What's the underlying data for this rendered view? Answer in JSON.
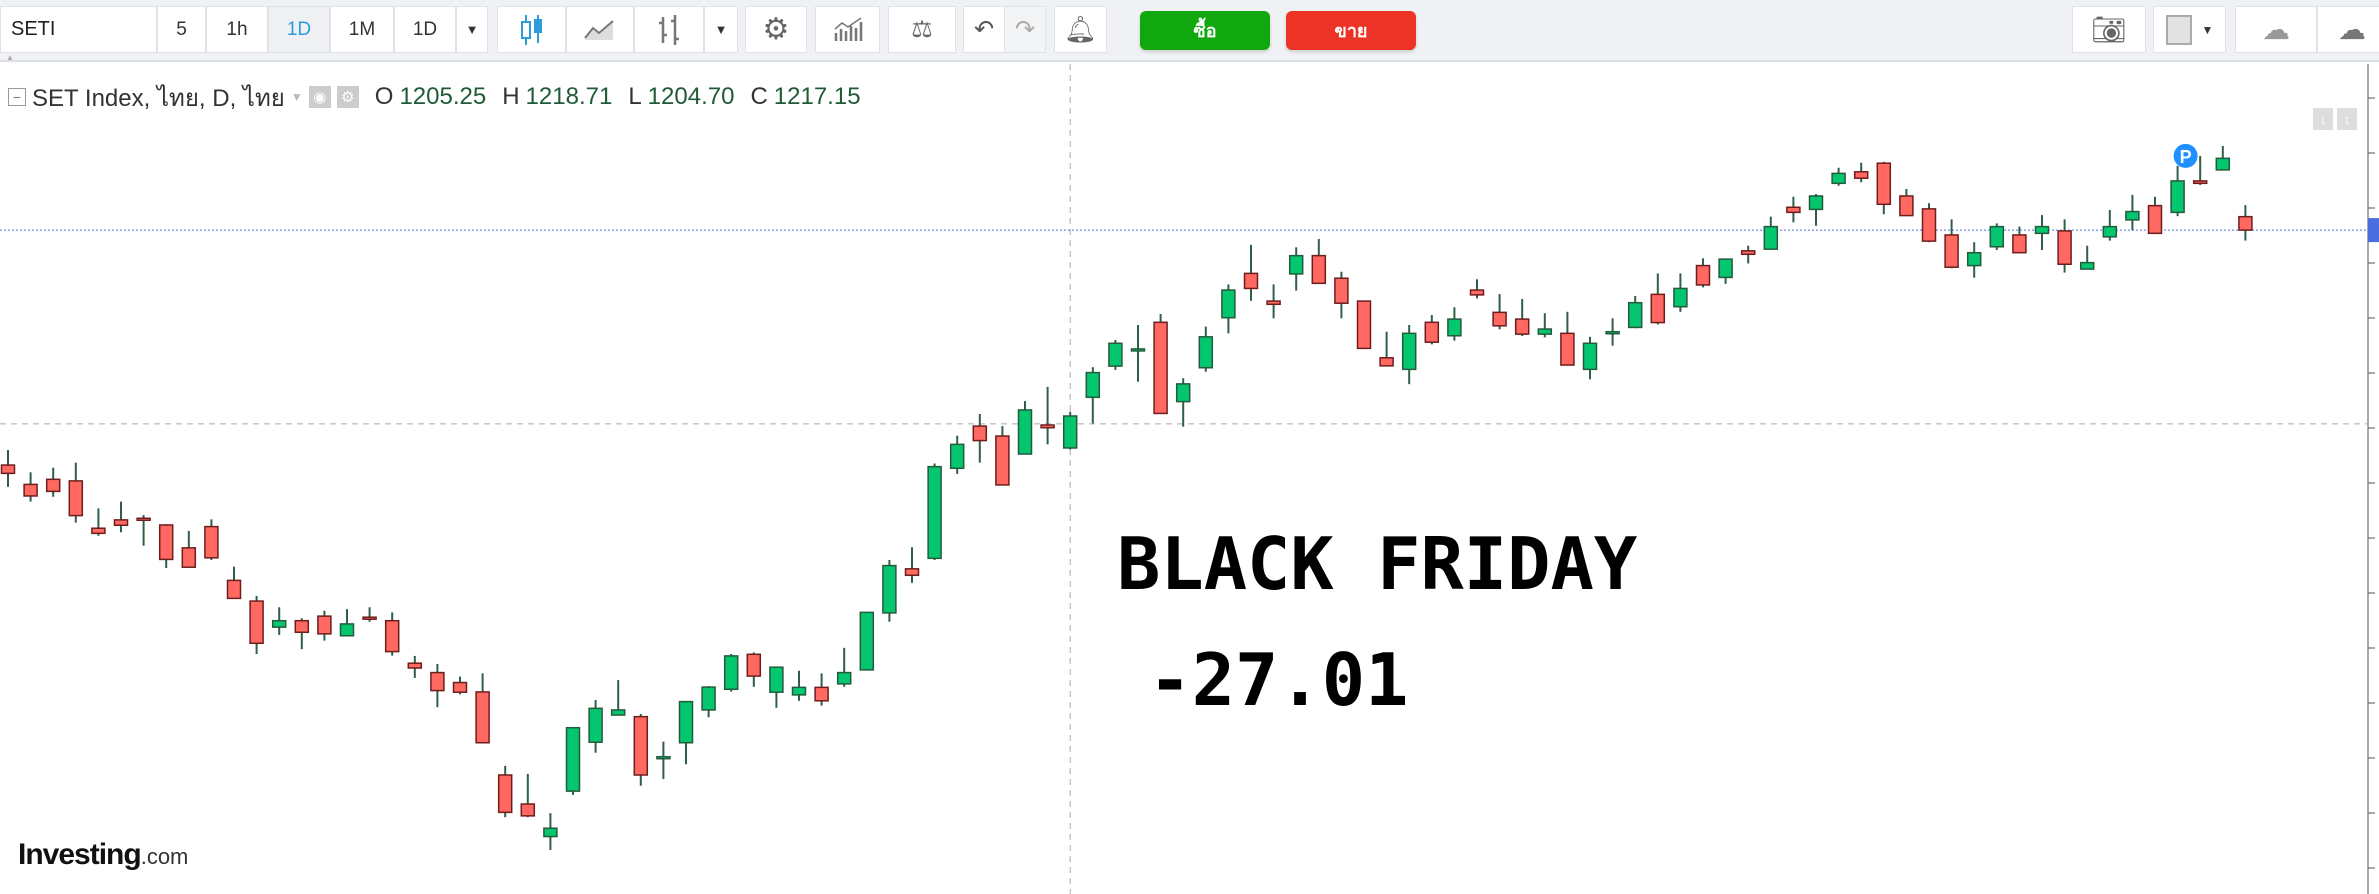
{
  "toolbar": {
    "symbol": "SETI",
    "intervals": [
      "5",
      "1h",
      "1D",
      "1M",
      "1D"
    ],
    "active_interval": "1D",
    "buy_label": "ซื้อ",
    "sell_label": "ขาย"
  },
  "legend": {
    "title": "SET Index, ไทย, D, ไทย",
    "o_label": "O",
    "o": "1205.25",
    "h_label": "H",
    "h": "1218.71",
    "l_label": "L",
    "l": "1204.70",
    "c_label": "C",
    "c": "1217.15"
  },
  "annotation": {
    "line1": "BLACK FRIDAY",
    "line2": " -27.01"
  },
  "logo": {
    "main": "Investing",
    "suffix": ".com"
  },
  "colors": {
    "up": "#03c66f",
    "down": "#ff6961",
    "up_border": "#245b3d",
    "down_border": "#6e1d1d",
    "wick": "#2f5f47",
    "last_price": "#4a6ee0",
    "marker": "#1e90ff"
  },
  "marker": {
    "label": "P",
    "candle_index": 96
  },
  "chart_data": {
    "type": "candlestick",
    "title": "SET Index, ไทย, D, ไทย",
    "interval": "D",
    "crosshair_candle_index": 47,
    "ohlc_order": [
      "open",
      "high",
      "low",
      "close"
    ],
    "candles": [
      [
        1198.9,
        1204.5,
        1190.8,
        1195.8
      ],
      [
        1191.7,
        1196.2,
        1185.3,
        1187.4
      ],
      [
        1193.6,
        1197.9,
        1187.1,
        1189.1
      ],
      [
        1193.0,
        1199.8,
        1177.5,
        1180.1
      ],
      [
        1175.4,
        1182.8,
        1172.6,
        1173.5
      ],
      [
        1178.5,
        1185.3,
        1173.9,
        1176.5
      ],
      [
        1179.1,
        1180.3,
        1168.9,
        1178.8
      ],
      [
        1176.6,
        1176.9,
        1160.6,
        1163.8
      ],
      [
        1168.1,
        1174.4,
        1160.9,
        1160.9
      ],
      [
        1176.0,
        1178.7,
        1163.6,
        1164.4
      ],
      [
        1156.0,
        1161.1,
        1149.3,
        1149.3
      ],
      [
        1148.3,
        1150.2,
        1128.6,
        1132.6
      ],
      [
        1138.6,
        1146.0,
        1135.7,
        1141.0
      ],
      [
        1141.0,
        1141.9,
        1130.4,
        1136.7
      ],
      [
        1142.7,
        1144.7,
        1133.6,
        1136.1
      ],
      [
        1135.4,
        1145.3,
        1135.4,
        1139.8
      ],
      [
        1142.3,
        1146.0,
        1140.6,
        1142.0
      ],
      [
        1141.0,
        1144.1,
        1128.0,
        1129.5
      ],
      [
        1125.2,
        1127.9,
        1119.7,
        1123.4
      ],
      [
        1121.7,
        1124.9,
        1108.8,
        1115.0
      ],
      [
        1118.0,
        1120.2,
        1113.6,
        1114.4
      ],
      [
        1114.5,
        1121.4,
        1095.6,
        1095.6
      ],
      [
        1083.6,
        1087.0,
        1067.9,
        1069.7
      ],
      [
        1072.8,
        1084.0,
        1067.9,
        1068.4
      ],
      [
        1060.7,
        1069.4,
        1055.7,
        1063.8
      ],
      [
        1077.6,
        1101.2,
        1076.2,
        1101.2
      ],
      [
        1095.8,
        1111.5,
        1091.9,
        1108.4
      ],
      [
        1105.9,
        1118.9,
        1105.9,
        1107.8
      ],
      [
        1105.3,
        1106.3,
        1079.6,
        1083.6
      ],
      [
        1090.2,
        1096.0,
        1082.1,
        1090.4
      ],
      [
        1095.6,
        1110.9,
        1087.6,
        1110.9
      ],
      [
        1107.8,
        1116.7,
        1105.1,
        1116.3
      ],
      [
        1115.5,
        1128.6,
        1114.6,
        1127.9
      ],
      [
        1128.5,
        1129.2,
        1116.4,
        1120.4
      ],
      [
        1114.4,
        1123.9,
        1108.6,
        1123.7
      ],
      [
        1113.4,
        1122.4,
        1111.2,
        1116.2
      ],
      [
        1116.2,
        1121.4,
        1109.4,
        1111.2
      ],
      [
        1117.5,
        1130.9,
        1116.4,
        1121.7
      ],
      [
        1122.7,
        1144.1,
        1122.7,
        1144.1
      ],
      [
        1143.9,
        1163.6,
        1140.6,
        1161.5
      ],
      [
        1160.3,
        1168.3,
        1155.1,
        1157.9
      ],
      [
        1164.2,
        1199.5,
        1163.6,
        1198.3
      ],
      [
        1197.7,
        1209.8,
        1195.6,
        1206.6
      ],
      [
        1213.4,
        1217.9,
        1199.8,
        1208.0
      ],
      [
        1209.7,
        1213.4,
        1191.5,
        1191.5
      ],
      [
        1203.0,
        1222.7,
        1203.0,
        1219.4
      ],
      [
        1213.8,
        1228.0,
        1206.6,
        1212.8
      ],
      [
        1205.25,
        1218.71,
        1204.7,
        1217.15
      ],
      [
        1224.1,
        1235.3,
        1214.4,
        1233.3
      ],
      [
        1235.7,
        1245.4,
        1234.3,
        1244.2
      ],
      [
        1241.9,
        1251.0,
        1229.9,
        1242.1
      ],
      [
        1252.0,
        1255.1,
        1218.1,
        1218.1
      ],
      [
        1222.5,
        1231.2,
        1213.2,
        1229.1
      ],
      [
        1235.1,
        1250.4,
        1233.6,
        1246.6
      ],
      [
        1253.7,
        1266.1,
        1247.9,
        1264.0
      ],
      [
        1270.2,
        1280.8,
        1260.0,
        1264.6
      ],
      [
        1259.9,
        1266.1,
        1253.5,
        1258.7
      ],
      [
        1270.0,
        1279.9,
        1263.8,
        1276.8
      ],
      [
        1276.8,
        1283.0,
        1266.5,
        1266.5
      ],
      [
        1268.4,
        1270.8,
        1253.5,
        1259.1
      ],
      [
        1259.9,
        1260.0,
        1242.3,
        1242.3
      ],
      [
        1238.8,
        1248.5,
        1235.8,
        1235.8
      ],
      [
        1234.5,
        1251.0,
        1229.0,
        1247.9
      ],
      [
        1252.0,
        1254.7,
        1243.8,
        1244.6
      ],
      [
        1247.0,
        1257.6,
        1245.2,
        1253.2
      ],
      [
        1264.0,
        1268.0,
        1260.9,
        1262.2
      ],
      [
        1255.7,
        1262.5,
        1249.4,
        1250.7
      ],
      [
        1253.2,
        1260.7,
        1246.9,
        1247.6
      ],
      [
        1247.6,
        1255.4,
        1246.4,
        1249.5
      ],
      [
        1247.9,
        1255.9,
        1236.1,
        1236.1
      ],
      [
        1234.5,
        1246.6,
        1230.8,
        1244.2
      ],
      [
        1248.3,
        1253.5,
        1243.3,
        1248.5
      ],
      [
        1250.1,
        1261.8,
        1249.8,
        1259.3
      ],
      [
        1262.4,
        1270.2,
        1251.2,
        1251.9
      ],
      [
        1257.8,
        1270.2,
        1255.9,
        1264.6
      ],
      [
        1273.1,
        1275.8,
        1265.0,
        1265.9
      ],
      [
        1268.7,
        1275.8,
        1266.3,
        1275.5
      ],
      [
        1278.6,
        1280.5,
        1273.9,
        1277.3
      ],
      [
        1279.2,
        1291.3,
        1279.2,
        1287.6
      ],
      [
        1294.8,
        1298.7,
        1289.2,
        1292.9
      ],
      [
        1294.0,
        1299.7,
        1287.9,
        1299.0
      ],
      [
        1303.7,
        1309.5,
        1302.8,
        1307.4
      ],
      [
        1308.0,
        1311.4,
        1304.1,
        1305.6
      ],
      [
        1311.2,
        1311.7,
        1292.2,
        1295.9
      ],
      [
        1299.0,
        1301.6,
        1291.7,
        1291.7
      ],
      [
        1294.2,
        1296.3,
        1281.8,
        1282.2
      ],
      [
        1284.5,
        1290.3,
        1272.1,
        1272.5
      ],
      [
        1273.1,
        1281.8,
        1268.6,
        1277.9
      ],
      [
        1280.1,
        1288.8,
        1278.9,
        1287.6
      ],
      [
        1284.5,
        1287.6,
        1277.9,
        1277.9
      ],
      [
        1285.1,
        1291.9,
        1278.9,
        1287.6
      ],
      [
        1286.0,
        1290.3,
        1270.5,
        1273.6
      ],
      [
        1271.8,
        1280.5,
        1271.8,
        1274.2
      ],
      [
        1283.8,
        1293.8,
        1282.4,
        1287.6
      ],
      [
        1290.1,
        1299.4,
        1286.3,
        1293.2
      ],
      [
        1295.4,
        1298.7,
        1285.1,
        1285.1
      ],
      [
        1292.9,
        1310.2,
        1291.5,
        1304.6
      ],
      [
        1304.6,
        1313.9,
        1303.1,
        1303.7
      ],
      [
        1308.7,
        1317.6,
        1308.7,
        1313.0
      ],
      [
        1291.3,
        1295.6,
        1282.4,
        1286.3
      ]
    ]
  }
}
